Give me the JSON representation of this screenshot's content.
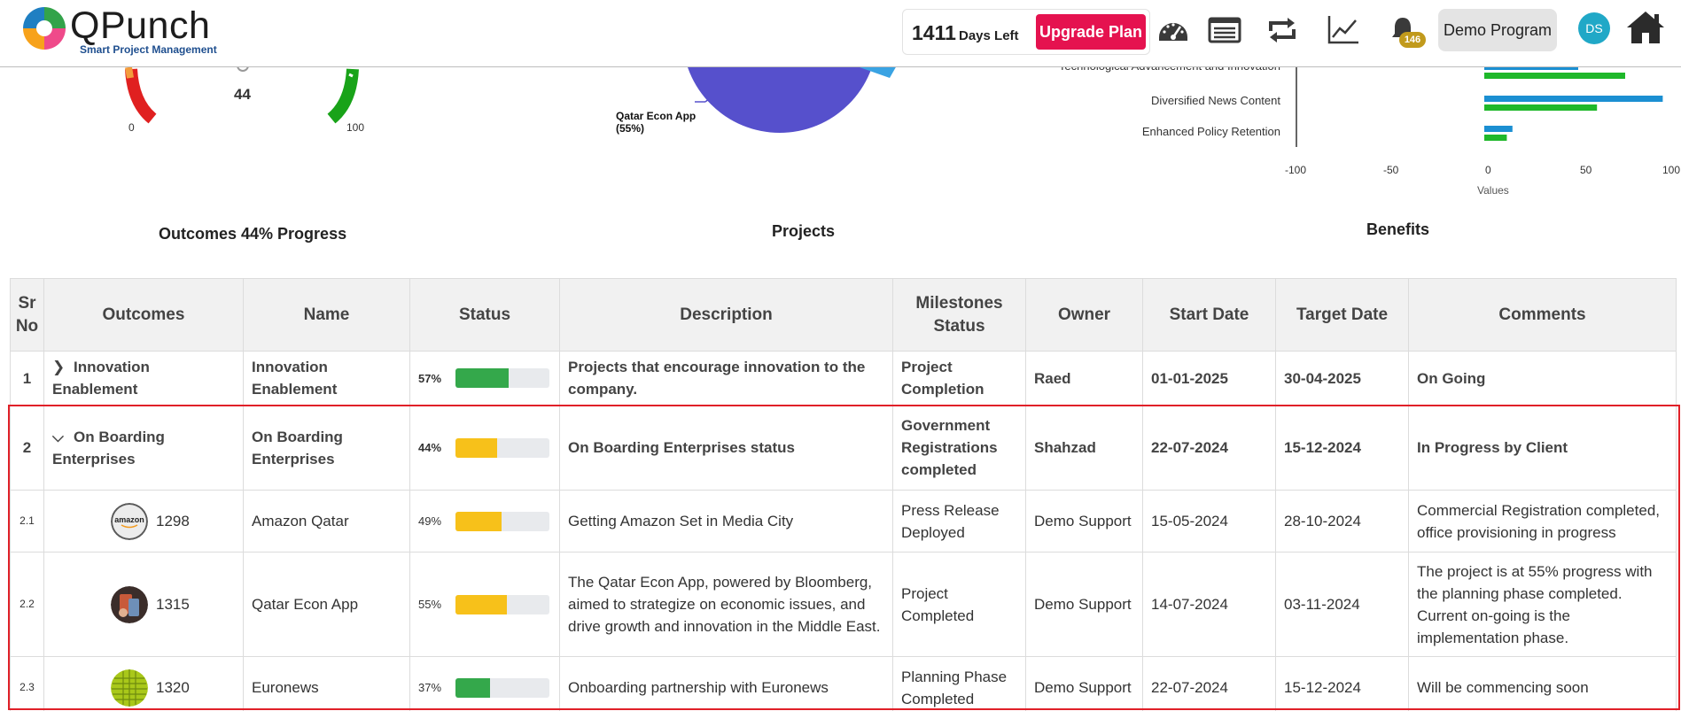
{
  "header": {
    "brand": "QPunch",
    "tagline": "Smart Project Management",
    "days_count": "1411",
    "days_label": "Days Left",
    "upgrade_label": "Upgrade Plan",
    "notification_count": "146",
    "program_label": "Demo Program",
    "avatar_initials": "DS",
    "icons": [
      "dashboard-icon",
      "list-icon",
      "repeat-icon",
      "trend-chart-icon",
      "bell-icon",
      "home-icon"
    ]
  },
  "charts": {
    "outcomes": {
      "title": "Outcomes 44% Progress",
      "value": "44",
      "min_label": "0",
      "max_label": "100"
    },
    "projects": {
      "title": "Projects",
      "pie_label_line1": "Qatar Econ App",
      "pie_label_line2": "(55%)"
    },
    "benefits": {
      "title": "Benefits",
      "axis_label": "Values"
    }
  },
  "chart_data": [
    {
      "type": "gauge",
      "title": "Outcomes 44% Progress",
      "value": 44,
      "range": [
        0,
        100
      ]
    },
    {
      "type": "pie",
      "title": "Projects",
      "slices": [
        {
          "label": "Qatar Econ App",
          "value": 55,
          "color": "#5650cc"
        },
        {
          "label": "",
          "color": "#3aa3e3"
        }
      ]
    },
    {
      "type": "bar",
      "orientation": "horizontal",
      "title": "Benefits",
      "xlabel": "Values",
      "xlim": [
        -100,
        100
      ],
      "ticks": [
        "-100",
        "-50",
        "0",
        "50",
        "100"
      ],
      "categories": [
        "Technological Advancement and Innovation",
        "Diversified News Content",
        "Enhanced Policy Retention"
      ],
      "series": [
        {
          "color": "#1b8fd2",
          "values": [
            50,
            95,
            15
          ]
        },
        {
          "color": "#1fb82a",
          "values": [
            75,
            60,
            12
          ]
        }
      ]
    }
  ],
  "table": {
    "headers": [
      "Sr No",
      "Outcomes",
      "Name",
      "Status",
      "Description",
      "Milestones Status",
      "Owner",
      "Start Date",
      "Target Date",
      "Comments"
    ],
    "rows": [
      {
        "sr": "1",
        "outcome": "Innovation Enablement",
        "name": "Innovation Enablement",
        "percent": "57%",
        "progress": 57,
        "bar_color": "#34a84b",
        "description": "Projects that encourage innovation to the company.",
        "milestone": "Project Completion",
        "owner": "Raed",
        "start": "01-01-2025",
        "target": "30-04-2025",
        "comments": "On Going"
      },
      {
        "sr": "2",
        "outcome": "On Boarding Enterprises",
        "name": "On Boarding Enterprises",
        "percent": "44%",
        "progress": 44,
        "bar_color": "#f7c11a",
        "description": "On Boarding Enterprises status",
        "milestone": "Government Registrations completed",
        "owner": "Shahzad",
        "start": "22-07-2024",
        "target": "15-12-2024",
        "comments": "In Progress by Client"
      },
      {
        "sr": "2.1",
        "outcome_id": "1298",
        "name": "Amazon Qatar",
        "percent": "49%",
        "progress": 49,
        "bar_color": "#f7c11a",
        "description": "Getting Amazon Set in Media City",
        "milestone": "Press Release Deployed",
        "owner": "Demo Support",
        "start": "15-05-2024",
        "target": "28-10-2024",
        "comments": "Commercial Registration completed, office provisioning in progress"
      },
      {
        "sr": "2.2",
        "outcome_id": "1315",
        "name": "Qatar Econ App",
        "percent": "55%",
        "progress": 55,
        "bar_color": "#f7c11a",
        "description": "The Qatar Econ App, powered by Bloomberg, aimed to strategize on economic issues, and drive growth and innovation in the Middle East.",
        "milestone": "Project Completed",
        "owner": "Demo Support",
        "start": "14-07-2024",
        "target": "03-11-2024",
        "comments": "The project is at 55% progress with the planning phase completed. Current on-going is the implementation phase."
      },
      {
        "sr": "2.3",
        "outcome_id": "1320",
        "name": "Euronews",
        "percent": "37%",
        "progress": 37,
        "bar_color": "#34a84b",
        "description": "Onboarding partnership with Euronews",
        "milestone": "Planning Phase Completed",
        "owner": "Demo Support",
        "start": "22-07-2024",
        "target": "15-12-2024",
        "comments": "Will be commencing soon"
      }
    ]
  },
  "colors": {
    "accent": "#e5124f",
    "highlight": "#e02028",
    "avatar": "#20a8c7",
    "badge": "#c19a1c"
  }
}
